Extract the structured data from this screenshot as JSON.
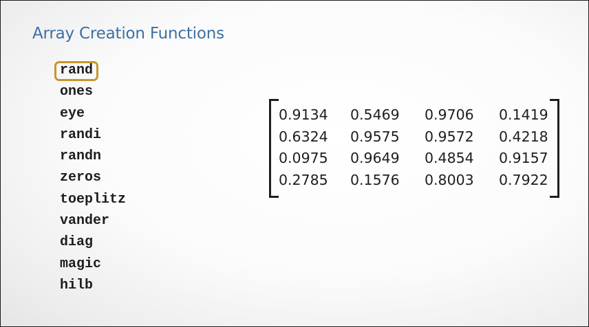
{
  "slide": {
    "title": "Array Creation Functions"
  },
  "functions": [
    {
      "label": "rand",
      "selected": true
    },
    {
      "label": "ones",
      "selected": false
    },
    {
      "label": "eye",
      "selected": false
    },
    {
      "label": "randi",
      "selected": false
    },
    {
      "label": "randn",
      "selected": false
    },
    {
      "label": "zeros",
      "selected": false
    },
    {
      "label": "toeplitz",
      "selected": false
    },
    {
      "label": "vander",
      "selected": false
    },
    {
      "label": "diag",
      "selected": false
    },
    {
      "label": "magic",
      "selected": false
    },
    {
      "label": "hilb",
      "selected": false
    }
  ],
  "matrix": {
    "rows": [
      [
        "0.9134",
        "0.5469",
        "0.9706",
        "0.1419"
      ],
      [
        "0.6324",
        "0.9575",
        "0.9572",
        "0.4218"
      ],
      [
        "0.0975",
        "0.9649",
        "0.4854",
        "0.9157"
      ],
      [
        "0.2785",
        "0.1576",
        "0.8003",
        "0.7922"
      ]
    ]
  },
  "colors": {
    "title": "#3e6fa6",
    "highlight": "#c9952b",
    "text": "#1e1e1e"
  }
}
